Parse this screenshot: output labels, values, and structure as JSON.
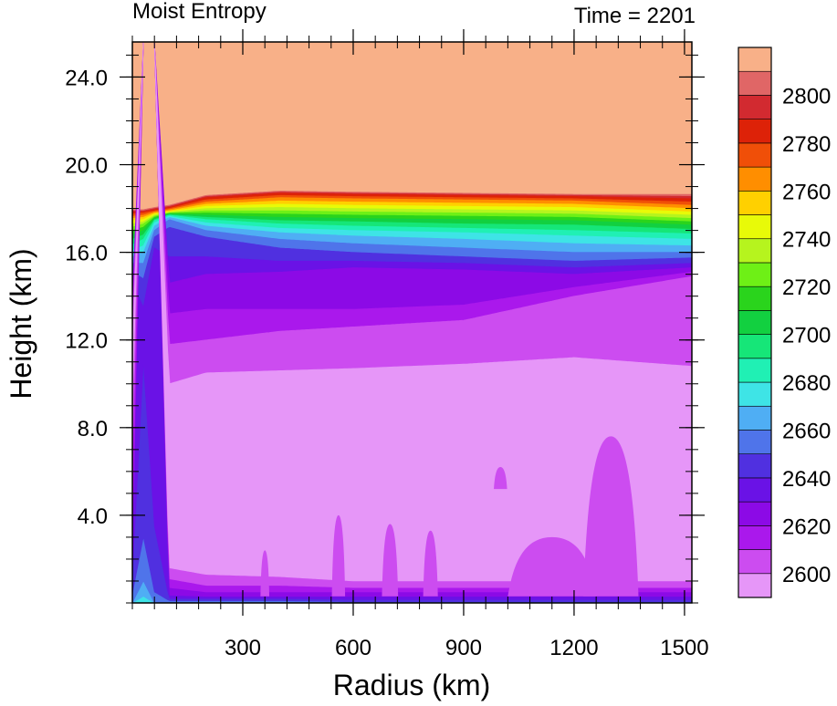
{
  "chart_data": {
    "type": "heatmap",
    "title_left": "Moist Entropy",
    "title_right": "Time = 2201",
    "xlabel": "Radius (km)",
    "ylabel": "Height (km)",
    "xlim": [
      0,
      1520
    ],
    "ylim": [
      0,
      25.6
    ],
    "x_ticks": [
      300,
      600,
      900,
      1200,
      1500
    ],
    "x_tick_labels": [
      "300",
      "600",
      "900",
      "1200",
      "1500"
    ],
    "y_ticks": [
      4,
      8,
      12,
      16,
      20,
      24
    ],
    "y_tick_labels": [
      "4.0",
      "8.0",
      "12.0",
      "16.0",
      "20.0",
      "24.0"
    ],
    "x_minor_step": 60,
    "y_minor_step": 1,
    "colorbar": {
      "placement": "right",
      "levels": [
        2600,
        2610,
        2620,
        2630,
        2640,
        2650,
        2660,
        2670,
        2680,
        2690,
        2700,
        2710,
        2720,
        2730,
        2740,
        2750,
        2760,
        2770,
        2780,
        2790,
        2800
      ],
      "labels": [
        "2600",
        "2620",
        "2640",
        "2660",
        "2680",
        "2700",
        "2720",
        "2740",
        "2760",
        "2780",
        "2800"
      ],
      "label_values": [
        2600,
        2620,
        2640,
        2660,
        2680,
        2700,
        2720,
        2740,
        2760,
        2780,
        2800
      ],
      "colors": [
        "#e696f8",
        "#cc4cf0",
        "#aa18ec",
        "#8c0ae6",
        "#6a12e6",
        "#5030e0",
        "#4f74ea",
        "#4faef4",
        "#3ee4e6",
        "#20f0b4",
        "#16e678",
        "#12d040",
        "#2ad41c",
        "#6ef016",
        "#b6f41e",
        "#e8fa08",
        "#ffd000",
        "#ff8e00",
        "#f04f08",
        "#dd2208",
        "#d22a30",
        "#e06666",
        "#f8b088"
      ]
    },
    "profiles": [
      {
        "r": 0,
        "b": [
          9.0,
          6.5,
          3.5,
          2.0,
          1.2,
          0.4,
          0.0,
          0.0,
          0.0,
          0.0,
          0.0,
          0.0,
          0.0,
          0.0,
          0.0,
          0.0,
          0.0,
          0.0,
          0.0,
          0.0,
          0.0,
          0.0
        ],
        "t": [
          11.5,
          12.5,
          13.3,
          14.0,
          14.6,
          15.1,
          15.5,
          15.8,
          16.1,
          16.35,
          16.6,
          16.8,
          17.0,
          17.15,
          17.3,
          17.45,
          17.55,
          17.65,
          17.75,
          17.85,
          17.9,
          17.95
        ]
      },
      {
        "r": 30,
        "b": [
          25.6,
          25.6,
          25.6,
          25.6,
          11.0,
          3.0,
          1.0,
          0.3,
          0.0,
          0.0,
          0.0,
          0.0,
          0.0,
          0.0,
          0.0,
          0.0,
          0.0,
          0.0,
          0.0,
          0.0,
          0.0,
          0.0
        ],
        "t": [
          25.6,
          25.6,
          25.6,
          25.6,
          13.5,
          14.8,
          15.5,
          16.0,
          16.3,
          16.6,
          16.8,
          17.0,
          17.15,
          17.3,
          17.4,
          17.5,
          17.6,
          17.7,
          17.8,
          17.85,
          17.9,
          17.95
        ]
      },
      {
        "r": 60,
        "b": [
          25.6,
          25.6,
          25.6,
          25.6,
          3.5,
          0.5,
          0.0,
          0.0,
          0.0,
          0.0,
          0.0,
          0.0,
          0.0,
          0.0,
          0.0,
          0.0,
          0.0,
          0.0,
          0.0,
          0.0,
          0.0,
          0.0
        ],
        "t": [
          25.6,
          25.6,
          25.6,
          25.6,
          16.2,
          16.7,
          17.0,
          17.2,
          17.35,
          17.45,
          17.5,
          17.55,
          17.6,
          17.65,
          17.7,
          17.75,
          17.8,
          17.85,
          17.9,
          17.95,
          18.0,
          18.05
        ]
      },
      {
        "r": 100,
        "b": [
          1.6,
          1.1,
          0.7,
          0.35,
          0.2,
          0.1,
          0.0,
          0.0,
          0.0,
          0.0,
          0.0,
          0.0,
          0.0,
          0.0,
          0.0,
          0.0,
          0.0,
          0.0,
          0.0,
          0.0,
          0.0,
          0.0
        ],
        "t": [
          10.0,
          11.8,
          13.2,
          14.6,
          15.8,
          17.15,
          17.5,
          17.6,
          17.65,
          17.7,
          17.72,
          17.75,
          17.78,
          17.8,
          17.83,
          17.86,
          17.9,
          17.95,
          18.0,
          18.05,
          18.1,
          18.15
        ]
      },
      {
        "r": 200,
        "b": [
          1.3,
          0.8,
          0.5,
          0.3,
          0.2,
          0.1,
          0.0,
          0.0,
          0.0,
          0.0,
          0.0,
          0.0,
          0.0,
          0.0,
          0.0,
          0.0,
          0.0,
          0.0,
          0.0,
          0.0,
          0.0,
          0.0
        ],
        "t": [
          10.5,
          12.0,
          13.4,
          15.0,
          15.8,
          16.7,
          17.0,
          17.2,
          17.35,
          17.5,
          17.6,
          17.7,
          17.8,
          17.9,
          18.0,
          18.1,
          18.2,
          18.3,
          18.4,
          18.5,
          18.55,
          18.6
        ]
      },
      {
        "r": 400,
        "b": [
          1.2,
          0.8,
          0.5,
          0.3,
          0.2,
          0.1,
          0.0,
          0.0,
          0.0,
          0.0,
          0.0,
          0.0,
          0.0,
          0.0,
          0.0,
          0.0,
          0.0,
          0.0,
          0.0,
          0.0,
          0.0,
          0.0
        ],
        "t": [
          10.6,
          12.4,
          13.4,
          15.1,
          15.6,
          16.2,
          16.6,
          16.9,
          17.1,
          17.3,
          17.45,
          17.6,
          17.75,
          17.9,
          18.05,
          18.2,
          18.35,
          18.5,
          18.6,
          18.7,
          18.75,
          18.8
        ]
      },
      {
        "r": 600,
        "b": [
          1.0,
          0.7,
          0.5,
          0.3,
          0.15,
          0.05,
          0.0,
          0.0,
          0.0,
          0.0,
          0.0,
          0.0,
          0.0,
          0.0,
          0.0,
          0.0,
          0.0,
          0.0,
          0.0,
          0.0,
          0.0,
          0.0
        ],
        "t": [
          10.7,
          12.6,
          13.4,
          15.3,
          15.6,
          16.0,
          16.4,
          16.75,
          17.0,
          17.2,
          17.4,
          17.55,
          17.7,
          17.85,
          18.0,
          18.15,
          18.3,
          18.45,
          18.55,
          18.65,
          18.7,
          18.75
        ]
      },
      {
        "r": 900,
        "b": [
          1.0,
          0.7,
          0.5,
          0.3,
          0.15,
          0.05,
          0.0,
          0.0,
          0.0,
          0.0,
          0.0,
          0.0,
          0.0,
          0.0,
          0.0,
          0.0,
          0.0,
          0.0,
          0.0,
          0.0,
          0.0,
          0.0
        ],
        "t": [
          10.9,
          12.9,
          13.6,
          15.2,
          15.5,
          15.8,
          16.2,
          16.6,
          16.9,
          17.1,
          17.3,
          17.5,
          17.65,
          17.8,
          17.95,
          18.1,
          18.25,
          18.4,
          18.5,
          18.6,
          18.65,
          18.7
        ]
      },
      {
        "r": 1200,
        "b": [
          1.0,
          0.7,
          0.5,
          0.3,
          0.15,
          0.05,
          0.0,
          0.0,
          0.0,
          0.0,
          0.0,
          0.0,
          0.0,
          0.0,
          0.0,
          0.0,
          0.0,
          0.0,
          0.0,
          0.0,
          0.0,
          0.0
        ],
        "t": [
          11.2,
          14.0,
          14.4,
          15.0,
          15.3,
          15.6,
          16.0,
          16.4,
          16.75,
          17.0,
          17.25,
          17.45,
          17.6,
          17.75,
          17.9,
          18.05,
          18.2,
          18.35,
          18.45,
          18.55,
          18.6,
          18.65
        ]
      },
      {
        "r": 1520,
        "b": [
          1.0,
          0.7,
          0.5,
          0.3,
          0.15,
          0.05,
          0.0,
          0.0,
          0.0,
          0.0,
          0.0,
          0.0,
          0.0,
          0.0,
          0.0,
          0.0,
          0.0,
          0.0,
          0.0,
          0.0,
          0.0,
          0.0
        ],
        "t": [
          10.8,
          14.9,
          15.1,
          15.3,
          15.5,
          15.75,
          16.0,
          16.3,
          16.6,
          16.85,
          17.05,
          17.25,
          17.4,
          17.55,
          17.7,
          17.85,
          18.0,
          18.15,
          18.3,
          18.45,
          18.55,
          18.65
        ]
      }
    ],
    "plumes": [
      {
        "r": 360,
        "base": 0.3,
        "top": 2.4,
        "halfwidth": 12,
        "level": 1
      },
      {
        "r": 560,
        "base": 0.3,
        "top": 4.0,
        "halfwidth": 18,
        "level": 1
      },
      {
        "r": 700,
        "base": 0.3,
        "top": 3.6,
        "halfwidth": 22,
        "level": 1
      },
      {
        "r": 810,
        "base": 0.3,
        "top": 3.3,
        "halfwidth": 20,
        "level": 1
      },
      {
        "r": 1000,
        "base": 5.2,
        "top": 6.2,
        "halfwidth": 18,
        "level": 1
      },
      {
        "r": 1140,
        "base": 0.3,
        "top": 3.0,
        "halfwidth": 120,
        "level": 1
      },
      {
        "r": 1300,
        "base": 0.3,
        "top": 7.6,
        "halfwidth": 75,
        "level": 1
      }
    ]
  }
}
